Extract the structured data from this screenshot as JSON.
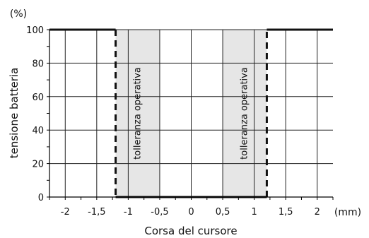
{
  "chart_data": {
    "type": "line",
    "title": "",
    "xlabel": "Corsa del cursore",
    "ylabel": "tensione batteria",
    "x_unit": "(mm)",
    "y_unit": "(%)",
    "xlim": [
      -2.25,
      2.25
    ],
    "ylim": [
      0,
      100
    ],
    "x_ticks": [
      -2,
      -1.5,
      -1,
      -0.5,
      0,
      0.5,
      1,
      1.5,
      2
    ],
    "x_tick_labels": [
      "-2",
      "-1,5",
      "-1",
      "-0,5",
      "0",
      "0,5",
      "1",
      "1,5",
      "2"
    ],
    "y_ticks": [
      0,
      20,
      40,
      60,
      80,
      100
    ],
    "y_tick_labels": [
      "0",
      "20",
      "40",
      "60",
      "80",
      "100"
    ],
    "grid": true,
    "series": [
      {
        "x": [
          -2.25,
          -1.2,
          -1.2,
          -0.5,
          -0.5,
          0.5,
          0.5,
          1.2,
          1.2,
          2.25
        ],
        "y": [
          100,
          100,
          0,
          0,
          0,
          0,
          0,
          0,
          100,
          100
        ]
      }
    ],
    "bands": [
      {
        "x_from": -1.2,
        "x_to": -0.5,
        "label": "tolleranza operativa",
        "fill": "#e6e6e6"
      },
      {
        "x_from": 0.5,
        "x_to": 1.2,
        "label": "tolleranza operativa",
        "fill": "#e6e6e6"
      }
    ],
    "colors": {
      "line": "#111111",
      "grid": "#222222",
      "band": "#e6e6e6"
    }
  }
}
